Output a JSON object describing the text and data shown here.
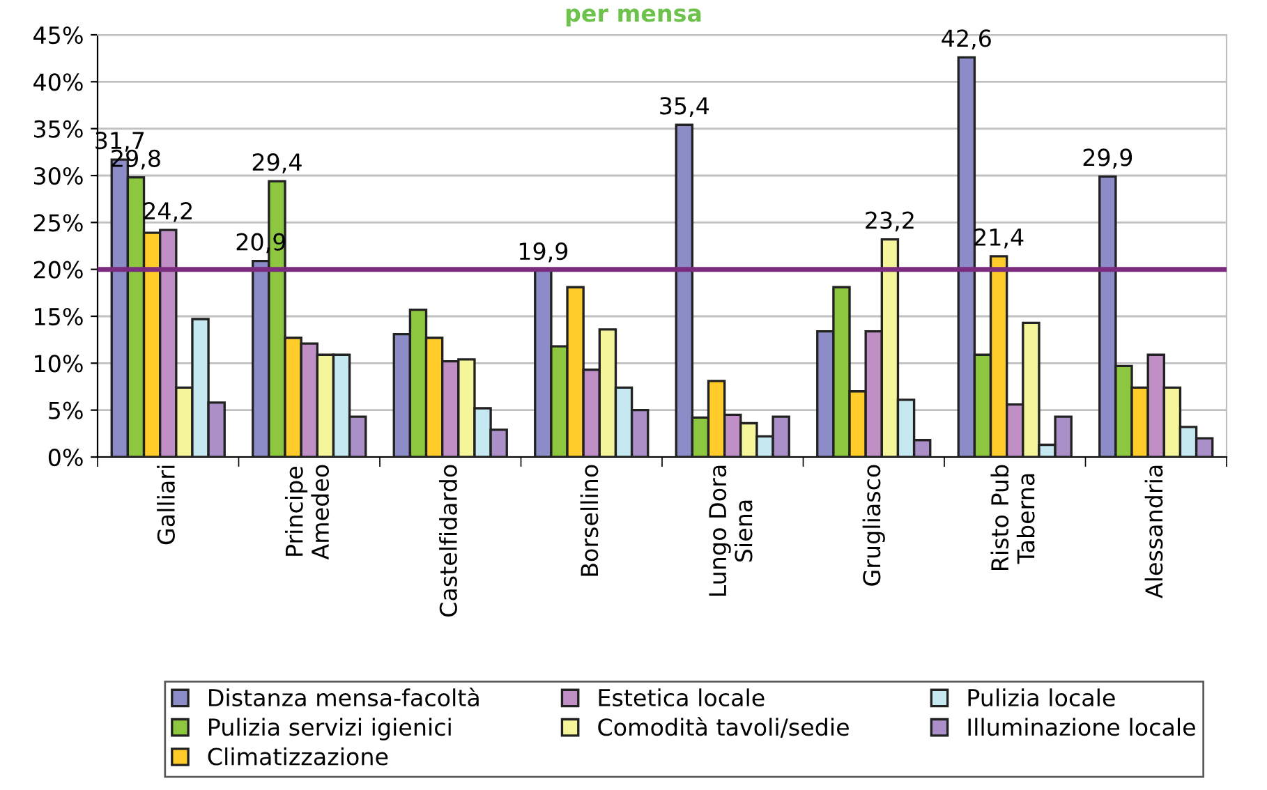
{
  "chart_data": {
    "type": "bar",
    "title": "per mensa",
    "categories": [
      "Galliari",
      "Principe\nAmedeo",
      "Castelfidardo",
      "Borsellino",
      "Lungo Dora\nSiena",
      "Grugliasco",
      "Risto Pub\nTaberna",
      "Alessandria"
    ],
    "series": [
      {
        "name": "Distanza mensa-facoltà",
        "color": "#8c8cc8",
        "values": [
          31.7,
          20.9,
          13.1,
          19.9,
          35.4,
          13.4,
          42.6,
          29.9
        ],
        "value_labels": [
          "31,7",
          "20,9",
          null,
          "19,9",
          "35,4",
          null,
          "42,6",
          "29,9"
        ]
      },
      {
        "name": "Pulizia servizi igienici",
        "color": "#8dc63f",
        "values": [
          29.8,
          29.4,
          15.7,
          11.8,
          4.2,
          18.1,
          10.9,
          9.7
        ],
        "value_labels": [
          "29,8",
          "29,4",
          null,
          null,
          null,
          null,
          null,
          null
        ]
      },
      {
        "name": "Climatizzazione",
        "color": "#ffcc29",
        "values": [
          23.9,
          12.7,
          12.7,
          18.1,
          8.1,
          7.0,
          21.4,
          7.4
        ],
        "value_labels": [
          null,
          null,
          null,
          null,
          null,
          null,
          "21,4",
          null
        ]
      },
      {
        "name": "Estetica locale",
        "color": "#bf8fc6",
        "values": [
          24.2,
          12.1,
          10.2,
          9.3,
          4.5,
          13.4,
          5.6,
          10.9
        ],
        "value_labels": [
          "24,2",
          null,
          null,
          null,
          null,
          null,
          null,
          null
        ]
      },
      {
        "name": "Comodità tavoli/sedie",
        "color": "#f5f59c",
        "values": [
          7.4,
          10.9,
          10.4,
          13.6,
          3.6,
          23.2,
          14.3,
          7.4
        ],
        "value_labels": [
          null,
          null,
          null,
          null,
          null,
          "23,2",
          null,
          null
        ]
      },
      {
        "name": "Pulizia locale",
        "color": "#c6e8f0",
        "values": [
          14.7,
          10.9,
          5.2,
          7.4,
          2.2,
          6.1,
          1.3,
          3.2
        ]
      },
      {
        "name": "Illuminazione locale",
        "color": "#ab8fc8",
        "values": [
          5.8,
          4.3,
          2.9,
          5.0,
          4.3,
          1.8,
          4.3,
          2.0
        ]
      }
    ],
    "ylim": [
      0,
      45
    ],
    "yticks": [
      {
        "value": 0,
        "label": "0%"
      },
      {
        "value": 5,
        "label": "5%"
      },
      {
        "value": 10,
        "label": "10%"
      },
      {
        "value": 15,
        "label": "15%"
      },
      {
        "value": 20,
        "label": "20%"
      },
      {
        "value": 25,
        "label": "25%"
      },
      {
        "value": 30,
        "label": "30%"
      },
      {
        "value": 35,
        "label": "35%"
      },
      {
        "value": 40,
        "label": "40%"
      },
      {
        "value": 45,
        "label": "45%"
      }
    ],
    "ref_lines": [
      {
        "axis": "y",
        "value": 20,
        "color": "#7b2c7f"
      }
    ],
    "grid": "y",
    "legend": "bottom"
  }
}
